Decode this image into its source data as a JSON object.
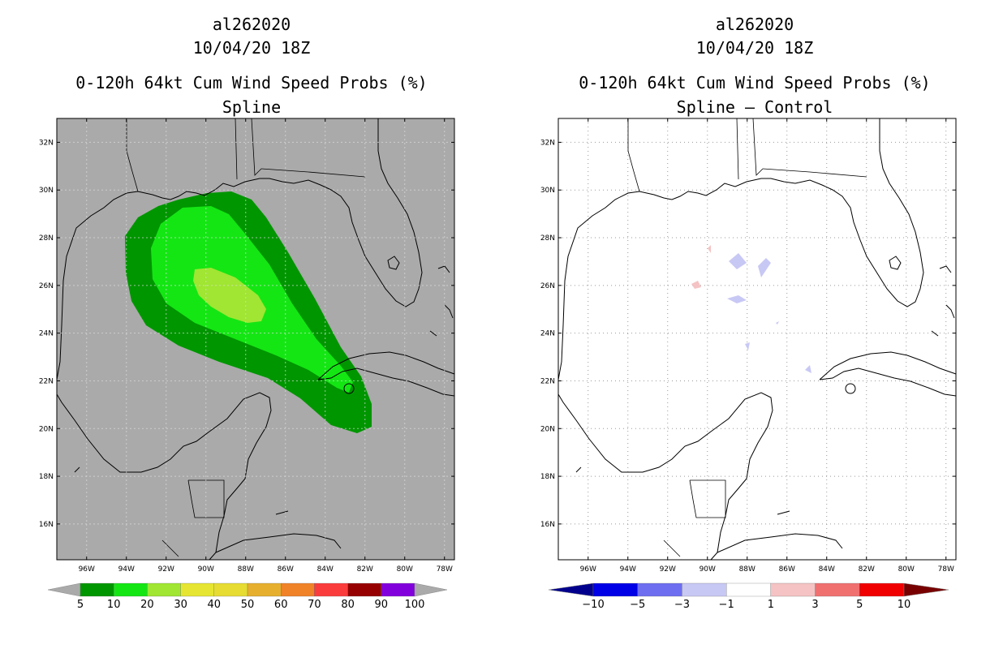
{
  "panels": [
    {
      "storm_id": "al262020",
      "datetime": "10/04/20 18Z",
      "product": "0-120h 64kt Cum Wind Speed Probs (%)",
      "subtitle": "Spline",
      "ocean_color": "#aaaaaa",
      "colorbar": {
        "labels": [
          "5",
          "10",
          "20",
          "30",
          "40",
          "50",
          "60",
          "70",
          "80",
          "90",
          "100"
        ],
        "colors": [
          "#009600",
          "#14e614",
          "#a0e632",
          "#e6e632",
          "#e6dc32",
          "#e6af2d",
          "#f08228",
          "#fa3c3c",
          "#960000",
          "#8200dc"
        ]
      }
    },
    {
      "storm_id": "al262020",
      "datetime": "10/04/20 18Z",
      "product": "0-120h 64kt Cum Wind Speed Probs (%)",
      "subtitle": "Spline – Control",
      "ocean_color": "#ffffff",
      "colorbar": {
        "labels": [
          "−10",
          "−5",
          "−3",
          "−1",
          "1",
          "3",
          "5",
          "10"
        ],
        "colors": [
          "#0000e6",
          "#6e6ef0",
          "#c8c8f5",
          "#ffffff",
          "#f5c3c3",
          "#f07070",
          "#f00000"
        ],
        "left_arrow": "#00008c",
        "right_arrow": "#780000"
      }
    }
  ],
  "map": {
    "lon_range": [
      -97.5,
      -77.5
    ],
    "lat_range": [
      14.5,
      33
    ],
    "lon_ticks": [
      "96W",
      "94W",
      "92W",
      "90W",
      "88W",
      "86W",
      "84W",
      "82W",
      "80W",
      "78W"
    ],
    "lat_ticks": [
      "16N",
      "18N",
      "20N",
      "22N",
      "24N",
      "26N",
      "28N",
      "30N",
      "32N"
    ]
  },
  "legend_notes": {
    "prob_levels": "5,10,20,30,40,50,60,70,80,90,100",
    "diff_levels": "-10,-5,-3,-1,1,3,5,10"
  }
}
